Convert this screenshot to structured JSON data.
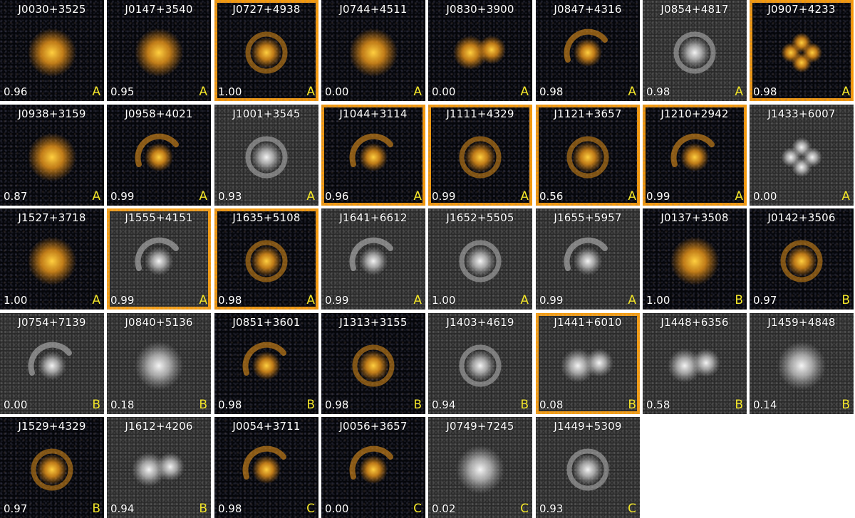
{
  "colors": {
    "highlight": "#f59a0c",
    "grade": "#f2e529",
    "text": "#ffffff"
  },
  "tiles": [
    {
      "name": "J0030+3525",
      "score": "0.96",
      "grade": "A",
      "highlighted": false,
      "mode": "color",
      "morph": "blob"
    },
    {
      "name": "J0147+3540",
      "score": "0.95",
      "grade": "A",
      "highlighted": false,
      "mode": "color",
      "morph": "blob"
    },
    {
      "name": "J0727+4938",
      "score": "1.00",
      "grade": "A",
      "highlighted": true,
      "mode": "color",
      "morph": "ring"
    },
    {
      "name": "J0744+4511",
      "score": "0.00",
      "grade": "A",
      "highlighted": false,
      "mode": "color",
      "morph": "blob"
    },
    {
      "name": "J0830+3900",
      "score": "0.00",
      "grade": "A",
      "highlighted": false,
      "mode": "color",
      "morph": "pair"
    },
    {
      "name": "J0847+4316",
      "score": "0.98",
      "grade": "A",
      "highlighted": false,
      "mode": "color",
      "morph": "arc"
    },
    {
      "name": "J0854+4817",
      "score": "0.98",
      "grade": "A",
      "highlighted": false,
      "mode": "gray",
      "morph": "ring"
    },
    {
      "name": "J0907+4233",
      "score": "0.98",
      "grade": "A",
      "highlighted": true,
      "mode": "color",
      "morph": "quad"
    },
    {
      "name": "J0938+3159",
      "score": "0.87",
      "grade": "A",
      "highlighted": false,
      "mode": "color",
      "morph": "blob"
    },
    {
      "name": "J0958+4021",
      "score": "0.99",
      "grade": "A",
      "highlighted": false,
      "mode": "color",
      "morph": "arc"
    },
    {
      "name": "J1001+3545",
      "score": "0.93",
      "grade": "A",
      "highlighted": false,
      "mode": "gray",
      "morph": "ring"
    },
    {
      "name": "J1044+3114",
      "score": "0.96",
      "grade": "A",
      "highlighted": true,
      "mode": "color",
      "morph": "arc"
    },
    {
      "name": "J1111+4329",
      "score": "0.99",
      "grade": "A",
      "highlighted": true,
      "mode": "color",
      "morph": "ring"
    },
    {
      "name": "J1121+3657",
      "score": "0.56",
      "grade": "A",
      "highlighted": true,
      "mode": "color",
      "morph": "ring"
    },
    {
      "name": "J1210+2942",
      "score": "0.99",
      "grade": "A",
      "highlighted": true,
      "mode": "color",
      "morph": "arc"
    },
    {
      "name": "J1433+6007",
      "score": "0.00",
      "grade": "A",
      "highlighted": false,
      "mode": "gray",
      "morph": "quad"
    },
    {
      "name": "J1527+3718",
      "score": "1.00",
      "grade": "A",
      "highlighted": false,
      "mode": "color",
      "morph": "blob"
    },
    {
      "name": "J1555+4151",
      "score": "0.99",
      "grade": "A",
      "highlighted": true,
      "mode": "gray",
      "morph": "arc"
    },
    {
      "name": "J1635+5108",
      "score": "0.98",
      "grade": "A",
      "highlighted": true,
      "mode": "color",
      "morph": "ring"
    },
    {
      "name": "J1641+6612",
      "score": "0.99",
      "grade": "A",
      "highlighted": false,
      "mode": "gray",
      "morph": "arc"
    },
    {
      "name": "J1652+5505",
      "score": "1.00",
      "grade": "A",
      "highlighted": false,
      "mode": "gray",
      "morph": "ring"
    },
    {
      "name": "J1655+5957",
      "score": "0.99",
      "grade": "A",
      "highlighted": false,
      "mode": "gray",
      "morph": "arc"
    },
    {
      "name": "J0137+3508",
      "score": "1.00",
      "grade": "B",
      "highlighted": false,
      "mode": "color",
      "morph": "blob"
    },
    {
      "name": "J0142+3506",
      "score": "0.97",
      "grade": "B",
      "highlighted": false,
      "mode": "color",
      "morph": "ring"
    },
    {
      "name": "J0754+7139",
      "score": "0.00",
      "grade": "B",
      "highlighted": false,
      "mode": "gray",
      "morph": "arc"
    },
    {
      "name": "J0840+5136",
      "score": "0.18",
      "grade": "B",
      "highlighted": false,
      "mode": "gray",
      "morph": "blob"
    },
    {
      "name": "J0851+3601",
      "score": "0.98",
      "grade": "B",
      "highlighted": false,
      "mode": "color",
      "morph": "arc"
    },
    {
      "name": "J1313+3155",
      "score": "0.98",
      "grade": "B",
      "highlighted": false,
      "mode": "color",
      "morph": "ring"
    },
    {
      "name": "J1403+4619",
      "score": "0.94",
      "grade": "B",
      "highlighted": false,
      "mode": "gray",
      "morph": "ring"
    },
    {
      "name": "J1441+6010",
      "score": "0.08",
      "grade": "B",
      "highlighted": true,
      "mode": "gray",
      "morph": "pair"
    },
    {
      "name": "J1448+6356",
      "score": "0.58",
      "grade": "B",
      "highlighted": false,
      "mode": "gray",
      "morph": "pair"
    },
    {
      "name": "J1459+4848",
      "score": "0.14",
      "grade": "B",
      "highlighted": false,
      "mode": "gray",
      "morph": "blob"
    },
    {
      "name": "J1529+4329",
      "score": "0.97",
      "grade": "B",
      "highlighted": false,
      "mode": "color",
      "morph": "ring"
    },
    {
      "name": "J1612+4206",
      "score": "0.94",
      "grade": "B",
      "highlighted": false,
      "mode": "gray",
      "morph": "pair"
    },
    {
      "name": "J0054+3711",
      "score": "0.98",
      "grade": "C",
      "highlighted": false,
      "mode": "color",
      "morph": "arc"
    },
    {
      "name": "J0056+3657",
      "score": "0.00",
      "grade": "C",
      "highlighted": false,
      "mode": "color",
      "morph": "arc"
    },
    {
      "name": "J0749+7245",
      "score": "0.02",
      "grade": "C",
      "highlighted": false,
      "mode": "gray",
      "morph": "blob"
    },
    {
      "name": "J1449+5309",
      "score": "0.93",
      "grade": "C",
      "highlighted": false,
      "mode": "gray",
      "morph": "ring"
    }
  ]
}
